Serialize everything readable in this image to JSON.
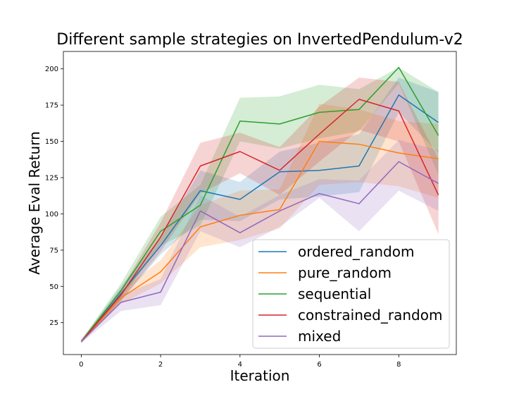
{
  "chart_data": {
    "type": "line",
    "title": "Different sample strategies on InvertedPendulum-v2",
    "xlabel": "Iteration",
    "ylabel": "Average Eval Return",
    "xlim": [
      -0.45,
      9.45
    ],
    "ylim": [
      3,
      212
    ],
    "xticks": [
      0,
      2,
      4,
      6,
      8
    ],
    "yticks": [
      25,
      50,
      75,
      100,
      125,
      150,
      175,
      200
    ],
    "x": [
      0,
      1,
      2,
      3,
      4,
      5,
      6,
      7,
      8,
      9
    ],
    "legend_position": "lower-right",
    "grid": false,
    "series": [
      {
        "name": "ordered_random",
        "color": "#1f77b4",
        "values": [
          12,
          45,
          78,
          116,
          110,
          129,
          130,
          133,
          182,
          163
        ],
        "lower": [
          11,
          40,
          72,
          96,
          95,
          110,
          112,
          115,
          170,
          142
        ],
        "upper": [
          13,
          50,
          84,
          130,
          122,
          143,
          149,
          155,
          194,
          184
        ]
      },
      {
        "name": "pure_random",
        "color": "#ff7f0e",
        "values": [
          12,
          42,
          60,
          91,
          99,
          103,
          150,
          148,
          142,
          138
        ],
        "lower": [
          11,
          38,
          52,
          77,
          82,
          90,
          120,
          122,
          119,
          111
        ],
        "upper": [
          13,
          47,
          68,
          106,
          116,
          117,
          176,
          172,
          164,
          162
        ]
      },
      {
        "name": "sequential",
        "color": "#2ca02c",
        "values": [
          12,
          47,
          88,
          106,
          164,
          162,
          170,
          172,
          201,
          154
        ],
        "lower": [
          11,
          42,
          78,
          92,
          150,
          145,
          152,
          157,
          190,
          127
        ],
        "upper": [
          13,
          52,
          98,
          120,
          180,
          181,
          189,
          186,
          201,
          184
        ]
      },
      {
        "name": "constrained_random",
        "color": "#d62728",
        "values": [
          12,
          44,
          84,
          133,
          143,
          130,
          155,
          179,
          171,
          113
        ],
        "lower": [
          11,
          40,
          74,
          114,
          128,
          113,
          136,
          158,
          150,
          86
        ],
        "upper": [
          13,
          48,
          94,
          149,
          156,
          146,
          174,
          194,
          191,
          138
        ]
      },
      {
        "name": "mixed",
        "color": "#9467bd",
        "values": [
          12,
          39,
          46,
          102,
          87,
          102,
          114,
          107,
          136,
          121
        ],
        "lower": [
          11,
          33,
          37,
          88,
          77,
          91,
          111,
          88,
          116,
          102
        ],
        "upper": [
          13,
          44,
          55,
          113,
          98,
          113,
          124,
          123,
          151,
          144
        ]
      }
    ]
  }
}
